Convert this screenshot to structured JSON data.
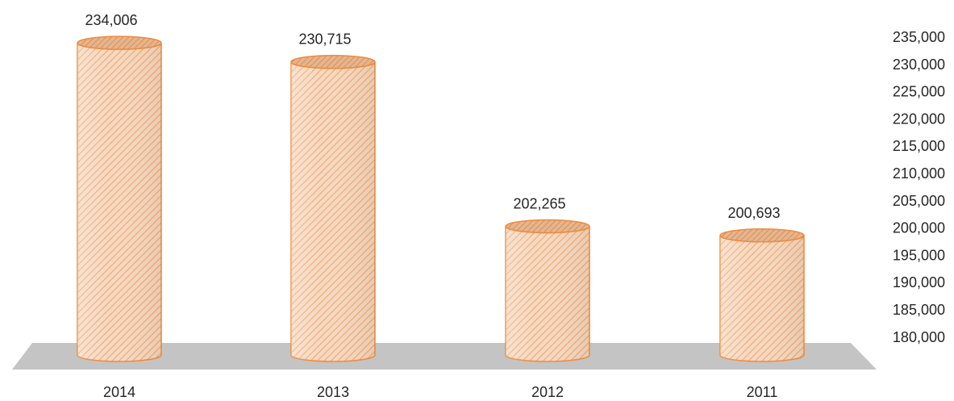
{
  "chart_data": {
    "type": "bar",
    "style": "3d-cylinder",
    "categories": [
      "2014",
      "2013",
      "2012",
      "2011"
    ],
    "values": [
      234006,
      230715,
      202265,
      200693
    ],
    "value_labels": [
      "234,006",
      "230,715",
      "202,265",
      "200,693"
    ],
    "ylim": [
      180000,
      235000
    ],
    "yticks": [
      180000,
      185000,
      190000,
      195000,
      200000,
      205000,
      210000,
      215000,
      220000,
      225000,
      230000,
      235000
    ],
    "ytick_labels": [
      "180,000",
      "185,000",
      "190,000",
      "195,000",
      "200,000",
      "205,000",
      "210,000",
      "215,000",
      "220,000",
      "225,000",
      "230,000",
      "235,000"
    ],
    "y_axis_position": "right",
    "grid": false,
    "legend": "none",
    "title": "",
    "xlabel": "",
    "ylabel": "",
    "colors": {
      "bar_fill": "#f7d9bf",
      "bar_stripe": "#e9a77a",
      "bar_edge": "#ee8a3c",
      "floor": "#c4c4c4",
      "text": "#262626"
    }
  }
}
